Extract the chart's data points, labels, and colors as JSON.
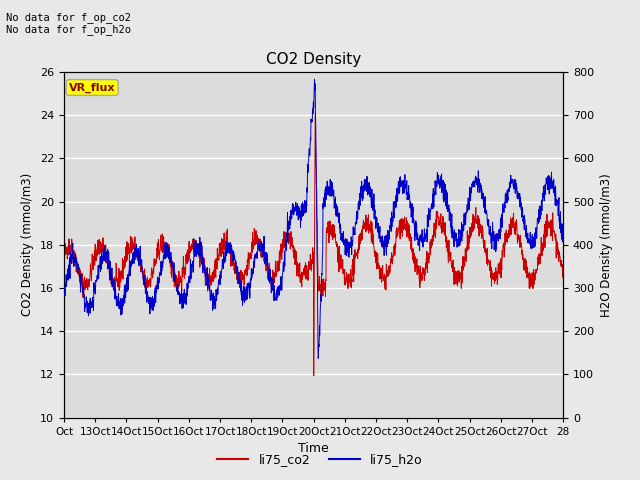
{
  "title": "CO2 Density",
  "xlabel": "Time",
  "ylabel_left": "CO2 Density (mmol/m3)",
  "ylabel_right": "H2O Density (mmol/m3)",
  "ylim_left": [
    10,
    26
  ],
  "ylim_right": [
    0,
    800
  ],
  "annotation_top": "No data for f_op_co2\nNo data for f_op_h2o",
  "vr_flux_label": "VR_flux",
  "legend_co2": "li75_co2",
  "legend_h2o": "li75_h2o",
  "co2_color": "#cc0000",
  "h2o_color": "#0000cc",
  "background_color": "#e8e8e8",
  "plot_bg_color": "#dcdcdc",
  "grid_color": "#ffffff",
  "x_tick_labels": [
    "Oct",
    "13Oct",
    "14Oct",
    "15Oct",
    "16Oct",
    "17Oct",
    "18Oct",
    "19Oct",
    "20Oct",
    "21Oct",
    "22Oct",
    "23Oct",
    "24Oct",
    "25Oct",
    "26Oct",
    "27Oct",
    "28"
  ],
  "n_points": 2000,
  "seed": 42
}
